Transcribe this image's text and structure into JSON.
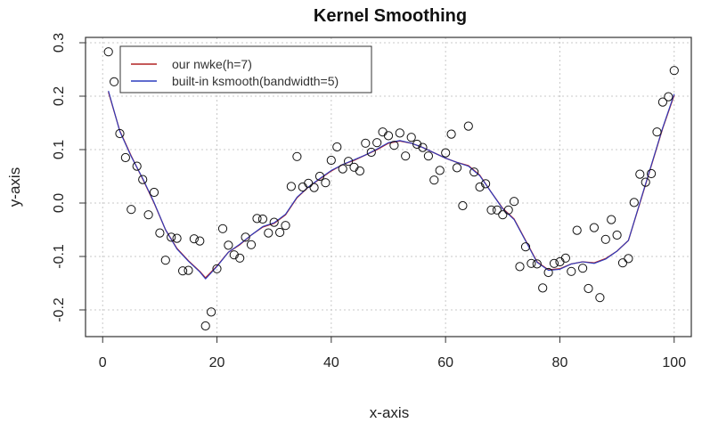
{
  "chart_data": {
    "type": "scatter",
    "title": "Kernel Smoothing",
    "xlabel": "x-axis",
    "ylabel": "y-axis",
    "xlim": [
      -3,
      103
    ],
    "ylim": [
      -0.25,
      0.31
    ],
    "xticks": [
      0,
      20,
      40,
      60,
      80,
      100
    ],
    "yticks": [
      -0.2,
      -0.1,
      0.0,
      0.1,
      0.2,
      0.3
    ],
    "ytick_labels": [
      "-0.2",
      "-0.1",
      "0.0",
      "0.1",
      "0.2",
      "0.3"
    ],
    "grid": true,
    "legend_position": "top-left",
    "points": {
      "x": [
        1,
        2,
        3,
        4,
        5,
        6,
        7,
        8,
        9,
        10,
        11,
        12,
        13,
        14,
        15,
        16,
        17,
        18,
        19,
        20,
        21,
        22,
        23,
        24,
        25,
        26,
        27,
        28,
        29,
        30,
        31,
        32,
        33,
        34,
        35,
        36,
        37,
        38,
        39,
        40,
        41,
        42,
        43,
        44,
        45,
        46,
        47,
        48,
        49,
        50,
        51,
        52,
        53,
        54,
        55,
        56,
        57,
        58,
        59,
        60,
        61,
        62,
        63,
        64,
        65,
        66,
        67,
        68,
        69,
        70,
        71,
        72,
        73,
        74,
        75,
        76,
        77,
        78,
        79,
        80,
        81,
        82,
        83,
        84,
        85,
        86,
        87,
        88,
        89,
        90,
        91,
        92,
        93,
        94,
        95,
        96,
        97,
        98,
        99,
        100
      ],
      "y": [
        0.283,
        0.227,
        0.13,
        0.085,
        -0.012,
        0.069,
        0.044,
        -0.022,
        0.02,
        -0.056,
        -0.107,
        -0.064,
        -0.066,
        -0.127,
        -0.126,
        -0.067,
        -0.071,
        -0.23,
        -0.204,
        -0.123,
        -0.048,
        -0.079,
        -0.097,
        -0.103,
        -0.064,
        -0.078,
        -0.029,
        -0.03,
        -0.056,
        -0.036,
        -0.055,
        -0.042,
        0.031,
        0.087,
        0.03,
        0.037,
        0.029,
        0.05,
        0.038,
        0.08,
        0.105,
        0.064,
        0.078,
        0.067,
        0.06,
        0.112,
        0.095,
        0.113,
        0.133,
        0.126,
        0.108,
        0.131,
        0.088,
        0.123,
        0.11,
        0.104,
        0.088,
        0.043,
        0.061,
        0.094,
        0.129,
        0.066,
        -0.005,
        0.144,
        0.058,
        0.03,
        0.036,
        -0.013,
        -0.013,
        -0.022,
        -0.013,
        0.003,
        -0.119,
        -0.082,
        -0.113,
        -0.114,
        -0.159,
        -0.13,
        -0.113,
        -0.11,
        -0.103,
        -0.128,
        -0.051,
        -0.122,
        -0.16,
        -0.046,
        -0.177,
        -0.068,
        -0.031,
        -0.06,
        -0.112,
        -0.104,
        0.001,
        0.054,
        0.039,
        0.055,
        0.133,
        0.189,
        0.199,
        0.248
      ]
    },
    "series": [
      {
        "name": "our nwke(h=7)",
        "color": "#b22222",
        "x": [
          1,
          3,
          5,
          7,
          9,
          11,
          13,
          15,
          17,
          18,
          20,
          22,
          24,
          26,
          28,
          30,
          32,
          34,
          36,
          38,
          40,
          42,
          44,
          46,
          48,
          50,
          52,
          54,
          56,
          58,
          60,
          62,
          64,
          66,
          68,
          70,
          72,
          74,
          76,
          78,
          80,
          82,
          84,
          86,
          88,
          90,
          92,
          94,
          96,
          98,
          100
        ],
        "y": [
          0.208,
          0.135,
          0.088,
          0.045,
          0.0,
          -0.05,
          -0.085,
          -0.108,
          -0.128,
          -0.14,
          -0.118,
          -0.092,
          -0.078,
          -0.06,
          -0.045,
          -0.038,
          -0.022,
          0.01,
          0.03,
          0.045,
          0.06,
          0.072,
          0.08,
          0.09,
          0.1,
          0.112,
          0.116,
          0.112,
          0.104,
          0.094,
          0.084,
          0.076,
          0.07,
          0.052,
          0.02,
          -0.01,
          -0.03,
          -0.07,
          -0.11,
          -0.125,
          -0.123,
          -0.114,
          -0.11,
          -0.112,
          -0.104,
          -0.09,
          -0.07,
          0.0,
          0.07,
          0.14,
          0.202
        ]
      },
      {
        "name": "built-in ksmooth(bandwidth=5)",
        "color": "#2b3bbf",
        "x": [
          1,
          3,
          5,
          7,
          9,
          11,
          13,
          15,
          17,
          18,
          20,
          22,
          24,
          26,
          28,
          30,
          32,
          34,
          36,
          38,
          40,
          42,
          44,
          46,
          48,
          50,
          52,
          54,
          56,
          58,
          60,
          62,
          64,
          66,
          68,
          70,
          72,
          74,
          76,
          78,
          80,
          82,
          84,
          86,
          88,
          90,
          92,
          94,
          96,
          98,
          100
        ],
        "y": [
          0.21,
          0.134,
          0.087,
          0.046,
          0.001,
          -0.05,
          -0.086,
          -0.109,
          -0.129,
          -0.142,
          -0.119,
          -0.092,
          -0.077,
          -0.06,
          -0.044,
          -0.037,
          -0.021,
          0.011,
          0.03,
          0.046,
          0.061,
          0.072,
          0.081,
          0.09,
          0.101,
          0.113,
          0.117,
          0.112,
          0.104,
          0.094,
          0.084,
          0.076,
          0.069,
          0.051,
          0.02,
          -0.011,
          -0.031,
          -0.071,
          -0.111,
          -0.126,
          -0.124,
          -0.114,
          -0.11,
          -0.113,
          -0.105,
          -0.09,
          -0.07,
          0.001,
          0.071,
          0.141,
          0.204
        ]
      }
    ]
  }
}
